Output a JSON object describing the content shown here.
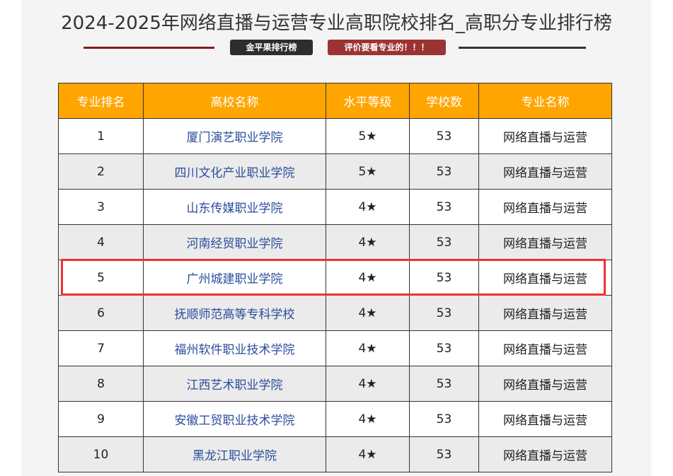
{
  "title": "2024-2025年网络直播与运营专业高职院校排名_高职分专业排行榜",
  "badges": [
    "金平果排行榜",
    "评价要看专业的！！！"
  ],
  "table": {
    "headers": [
      "专业排名",
      "高校名称",
      "水平等级",
      "学校数",
      "专业名称"
    ],
    "rows": [
      [
        "1",
        "厦门演艺职业学院",
        "5★",
        "53",
        "网络直播与运营"
      ],
      [
        "2",
        "四川文化产业职业学院",
        "5★",
        "53",
        "网络直播与运营"
      ],
      [
        "3",
        "山东传媒职业学院",
        "4★",
        "53",
        "网络直播与运营"
      ],
      [
        "4",
        "河南经贸职业学院",
        "4★",
        "53",
        "网络直播与运营"
      ],
      [
        "5",
        "广州城建职业学院",
        "4★",
        "53",
        "网络直播与运营"
      ],
      [
        "6",
        "抚顺师范高等专科学校",
        "4★",
        "53",
        "网络直播与运营"
      ],
      [
        "7",
        "福州软件职业技术学院",
        "4★",
        "53",
        "网络直播与运营"
      ],
      [
        "8",
        "江西艺术职业学院",
        "4★",
        "53",
        "网络直播与运营"
      ],
      [
        "9",
        "安徽工贸职业技术学院",
        "4★",
        "53",
        "网络直播与运营"
      ],
      [
        "10",
        "黑龙江职业学院",
        "4★",
        "53",
        "网络直播与运营"
      ]
    ],
    "highlighted_rank": "5"
  },
  "colors": {
    "header_bg": "#ffa500",
    "highlight": "#f03030",
    "link": "#2a4d9b"
  }
}
